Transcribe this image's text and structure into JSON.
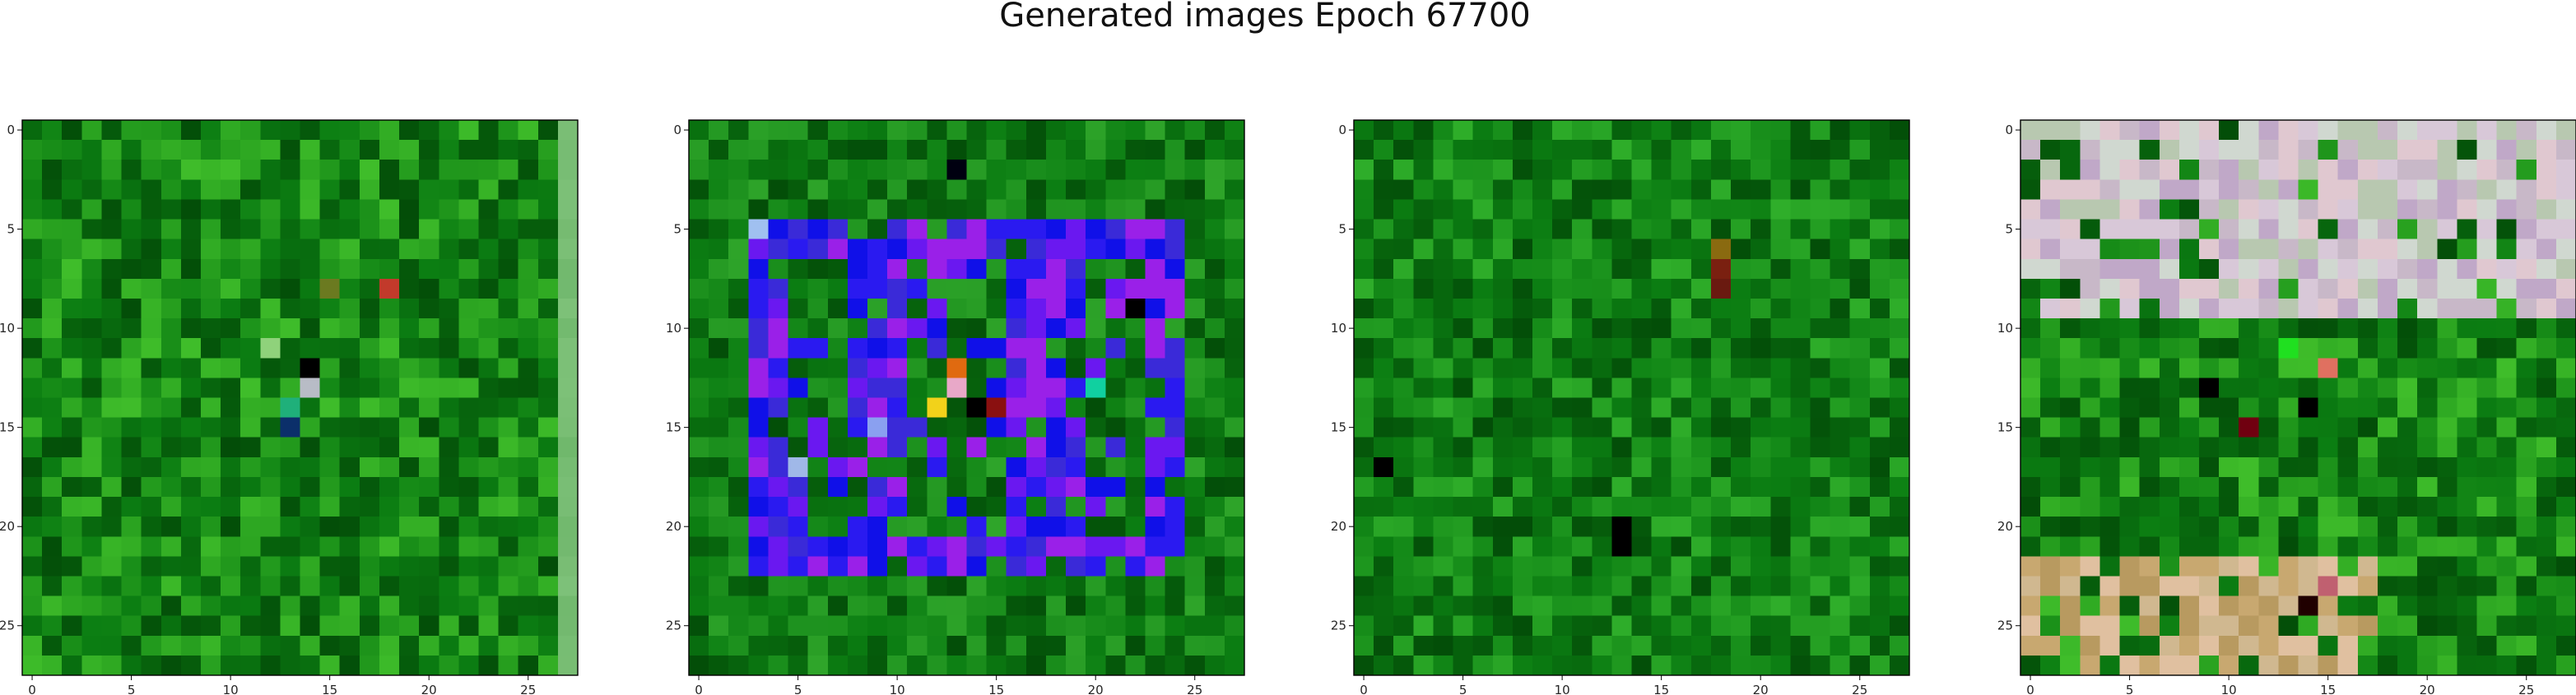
{
  "figure": {
    "title": "Generated images Epoch 67700"
  },
  "chart_data": [
    {
      "type": "heatmap",
      "panel": 1,
      "grid": {
        "rows": 28,
        "cols": 28
      },
      "xlim": [
        -0.5,
        27.5
      ],
      "ylim": [
        27.5,
        -0.5
      ],
      "x_ticks": [
        "0",
        "5",
        "10",
        "15",
        "20",
        "25"
      ],
      "y_ticks": [
        "0",
        "5",
        "10",
        "15",
        "20",
        "25"
      ],
      "palette": {
        "base": "#0b7d12",
        "dark": "#034d08",
        "accent": "#3fbd2a"
      },
      "notable_pixels": [
        {
          "row": 12,
          "col": 14,
          "color": "#000000"
        },
        {
          "row": 13,
          "col": 14,
          "color": "#b8bcc6"
        },
        {
          "row": 14,
          "col": 13,
          "color": "#1fb07a"
        },
        {
          "row": 11,
          "col": 12,
          "color": "#8fd27b"
        },
        {
          "row": 8,
          "col": 18,
          "color": "#c23a2b"
        },
        {
          "row": 8,
          "col": 15,
          "color": "#6b7a20"
        },
        {
          "row": 15,
          "col": 13,
          "color": "#0b2f6a"
        }
      ],
      "edge_column": {
        "col": 27,
        "color": "#7fc27a"
      }
    },
    {
      "type": "heatmap",
      "panel": 2,
      "grid": {
        "rows": 28,
        "cols": 28
      },
      "xlim": [
        -0.5,
        27.5
      ],
      "ylim": [
        27.5,
        -0.5
      ],
      "x_ticks": [
        "0",
        "5",
        "10",
        "15",
        "20",
        "25"
      ],
      "y_ticks": [
        "0",
        "5",
        "10",
        "15",
        "20",
        "25"
      ],
      "palette": {
        "base": "#0b7d12",
        "dark": "#034d08",
        "accent": "#2fa52a"
      },
      "region": {
        "row_start": 5,
        "row_end": 22,
        "col_start": 3,
        "col_end": 24,
        "colors": [
          "#1010e8",
          "#2a1af0",
          "#6a18f0",
          "#3a2ad8",
          "#9a20e8"
        ]
      },
      "notable_pixels": [
        {
          "row": 14,
          "col": 12,
          "color": "#f2d21a"
        },
        {
          "row": 13,
          "col": 13,
          "color": "#e8a8c8"
        },
        {
          "row": 12,
          "col": 13,
          "color": "#e06a10"
        },
        {
          "row": 5,
          "col": 3,
          "color": "#a0c0f0"
        },
        {
          "row": 17,
          "col": 5,
          "color": "#a0b8e8"
        },
        {
          "row": 13,
          "col": 20,
          "color": "#10d0a0"
        },
        {
          "row": 15,
          "col": 9,
          "color": "#8aa0f0"
        },
        {
          "row": 14,
          "col": 14,
          "color": "#000000"
        },
        {
          "row": 14,
          "col": 15,
          "color": "#8a1010"
        },
        {
          "row": 9,
          "col": 22,
          "color": "#000000"
        },
        {
          "row": 2,
          "col": 13,
          "color": "#000010"
        }
      ]
    },
    {
      "type": "heatmap",
      "panel": 3,
      "grid": {
        "rows": 28,
        "cols": 28
      },
      "xlim": [
        -0.5,
        27.5
      ],
      "ylim": [
        27.5,
        -0.5
      ],
      "x_ticks": [
        "0",
        "5",
        "10",
        "15",
        "20",
        "25"
      ],
      "y_ticks": [
        "0",
        "5",
        "10",
        "15",
        "20",
        "25"
      ],
      "palette": {
        "base": "#0b7d12",
        "dark": "#034d08",
        "accent": "#2fae2a"
      },
      "notable_pixels": [
        {
          "row": 6,
          "col": 18,
          "color": "#8a6a10"
        },
        {
          "row": 7,
          "col": 18,
          "color": "#7a2010"
        },
        {
          "row": 8,
          "col": 18,
          "color": "#6a1a10"
        },
        {
          "row": 20,
          "col": 13,
          "color": "#000000"
        },
        {
          "row": 21,
          "col": 13,
          "color": "#000000"
        },
        {
          "row": 17,
          "col": 1,
          "color": "#000000"
        }
      ]
    },
    {
      "type": "heatmap",
      "panel": 4,
      "grid": {
        "rows": 28,
        "cols": 28
      },
      "xlim": [
        -0.5,
        27.5
      ],
      "ylim": [
        27.5,
        -0.5
      ],
      "x_ticks": [
        "0",
        "5",
        "10",
        "15",
        "20",
        "25"
      ],
      "y_ticks": [
        "0",
        "5",
        "10",
        "15",
        "20",
        "25"
      ],
      "palette": {
        "base": "#0b7d12",
        "dark": "#034d08",
        "accent": "#3fbd2a"
      },
      "region": {
        "row_start": 0,
        "row_end": 9,
        "col_start": 0,
        "col_end": 27,
        "colors": [
          "#d8c8d8",
          "#c8b8c8",
          "#d0d8d0",
          "#e0c8d0",
          "#c0a8c8",
          "#b8c8b0"
        ]
      },
      "bottom_region": {
        "row_start": 22,
        "row_end": 27,
        "col_start": 0,
        "col_end": 17,
        "colors": [
          "#c8a870",
          "#d0b890",
          "#b89a60",
          "#e0c0a0"
        ]
      },
      "notable_pixels": [
        {
          "row": 11,
          "col": 13,
          "color": "#20e020"
        },
        {
          "row": 12,
          "col": 15,
          "color": "#e07060"
        },
        {
          "row": 13,
          "col": 9,
          "color": "#000000"
        },
        {
          "row": 14,
          "col": 14,
          "color": "#000000"
        },
        {
          "row": 15,
          "col": 11,
          "color": "#700010"
        },
        {
          "row": 24,
          "col": 14,
          "color": "#200000"
        },
        {
          "row": 23,
          "col": 15,
          "color": "#c06070"
        }
      ]
    }
  ]
}
